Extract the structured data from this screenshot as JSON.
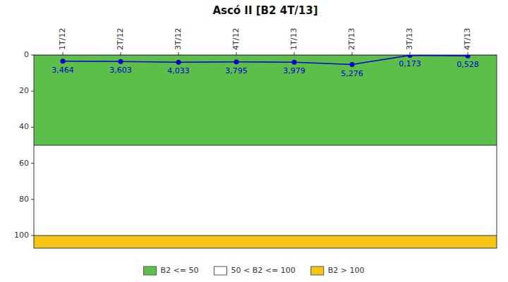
{
  "chart_data": {
    "type": "line",
    "title": "Ascó II [B2 4T/13]",
    "categories": [
      "1T/12",
      "2T/12",
      "3T/12",
      "4T/12",
      "1T/13",
      "2T/13",
      "3T/13",
      "4T/13"
    ],
    "values": [
      3.464,
      3.603,
      4.033,
      3.795,
      3.979,
      5.276,
      0.173,
      0.528
    ],
    "value_labels": [
      "3,464",
      "3,603",
      "4,033",
      "3,795",
      "3,979",
      "5,276",
      "0,173",
      "0,528"
    ],
    "color": "#0000CC",
    "marker": "circle",
    "data_labels": true,
    "ylim": [
      107,
      0
    ],
    "yticks": [
      0,
      20,
      40,
      60,
      80,
      100
    ],
    "grid": false,
    "bands": [
      {
        "name": "B2 <= 50",
        "color": "#5CBF4A",
        "from": 0,
        "to": 50
      },
      {
        "name": "50 < B2 <= 100",
        "color": "#FFFFFF",
        "from": 50,
        "to": 100
      },
      {
        "name": "B2 > 100",
        "color": "#F5C518",
        "from": 100,
        "to": 107
      }
    ],
    "legend": "bottom"
  }
}
